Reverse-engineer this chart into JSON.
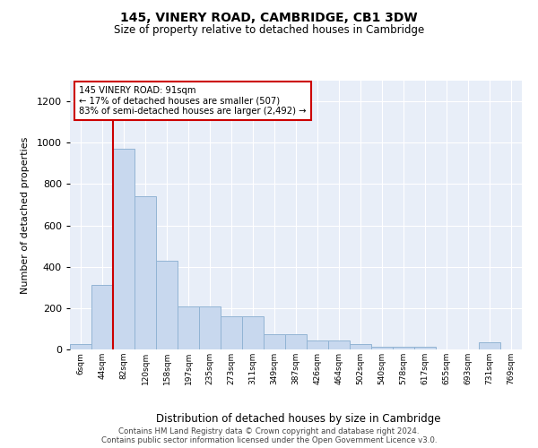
{
  "title1": "145, VINERY ROAD, CAMBRIDGE, CB1 3DW",
  "title2": "Size of property relative to detached houses in Cambridge",
  "xlabel": "Distribution of detached houses by size in Cambridge",
  "ylabel": "Number of detached properties",
  "bar_color": "#c8d8ee",
  "bar_edge_color": "#92b4d4",
  "background_color": "#e8eef8",
  "grid_color": "#ffffff",
  "annotation_text": "145 VINERY ROAD: 91sqm\n← 17% of detached houses are smaller (507)\n83% of semi-detached houses are larger (2,492) →",
  "annotation_box_color": "#ffffff",
  "annotation_border_color": "#cc0000",
  "red_line_x": 1.5,
  "red_line_color": "#cc0000",
  "footer1": "Contains HM Land Registry data © Crown copyright and database right 2024.",
  "footer2": "Contains public sector information licensed under the Open Government Licence v3.0.",
  "bins": [
    "6sqm",
    "44sqm",
    "82sqm",
    "120sqm",
    "158sqm",
    "197sqm",
    "235sqm",
    "273sqm",
    "311sqm",
    "349sqm",
    "387sqm",
    "426sqm",
    "464sqm",
    "502sqm",
    "540sqm",
    "578sqm",
    "617sqm",
    "655sqm",
    "693sqm",
    "731sqm",
    "769sqm"
  ],
  "values": [
    25,
    310,
    970,
    740,
    430,
    210,
    210,
    160,
    160,
    75,
    75,
    45,
    45,
    25,
    15,
    15,
    15,
    0,
    0,
    35,
    0
  ],
  "ylim": [
    0,
    1300
  ],
  "yticks": [
    0,
    200,
    400,
    600,
    800,
    1000,
    1200
  ]
}
